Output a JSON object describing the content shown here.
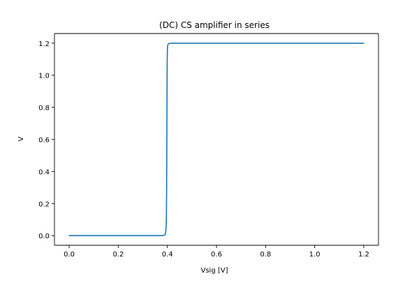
{
  "chart_data": {
    "type": "line",
    "title": "(DC) CS amplifier in series",
    "xlabel": "Vsig [V]",
    "ylabel": "V",
    "xlim": [
      -0.06,
      1.26
    ],
    "ylim": [
      -0.06,
      1.26
    ],
    "xticks": [
      0.0,
      0.2,
      0.4,
      0.6,
      0.8,
      1.0,
      1.2
    ],
    "xtick_labels": [
      "0.0",
      "0.2",
      "0.4",
      "0.6",
      "0.8",
      "1.0",
      "1.2"
    ],
    "yticks": [
      0.0,
      0.2,
      0.4,
      0.6,
      0.8,
      1.0,
      1.2
    ],
    "ytick_labels": [
      "0.0",
      "0.2",
      "0.4",
      "0.6",
      "0.8",
      "1.0",
      "1.2"
    ],
    "grid": false,
    "line_color": "#1f77b4",
    "series": [
      {
        "x": [
          0.0,
          0.1,
          0.2,
          0.3,
          0.38,
          0.39,
          0.393,
          0.395,
          0.396,
          0.397,
          0.398,
          0.399,
          0.4,
          0.401,
          0.402,
          0.404,
          0.407,
          0.41,
          0.42,
          0.5,
          0.6,
          0.8,
          1.0,
          1.2
        ],
        "y": [
          0.0,
          0.0,
          0.0,
          0.0,
          0.0,
          0.005,
          0.02,
          0.06,
          0.12,
          0.3,
          0.7,
          1.05,
          1.16,
          1.185,
          1.19,
          1.195,
          1.198,
          1.199,
          1.2,
          1.2,
          1.2,
          1.2,
          1.2,
          1.2
        ]
      }
    ]
  }
}
